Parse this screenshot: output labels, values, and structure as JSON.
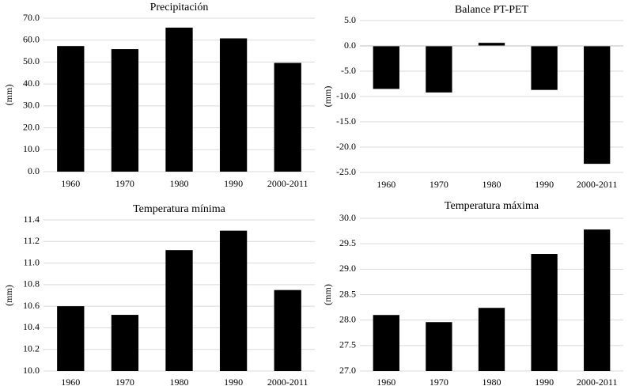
{
  "chart_data": [
    {
      "type": "bar",
      "title": "Precipitación",
      "ylabel": "(mm)",
      "xlabel": "",
      "categories": [
        "1960",
        "1970",
        "1980",
        "1990",
        "2000-2011"
      ],
      "values": [
        57.3,
        55.9,
        65.7,
        60.8,
        49.6
      ],
      "ylim": [
        0,
        70
      ],
      "yticks": [
        "0.0",
        "10.0",
        "20.0",
        "30.0",
        "40.0",
        "50.0",
        "60.0",
        "70.0"
      ],
      "ytick_values": [
        0,
        10,
        20,
        30,
        40,
        50,
        60,
        70
      ],
      "grid": true
    },
    {
      "type": "bar",
      "title": "Balance PT-PET",
      "ylabel": "(mm)",
      "xlabel": "",
      "categories": [
        "1960",
        "1970",
        "1980",
        "1990",
        "2000-2011"
      ],
      "values": [
        -8.5,
        -9.2,
        0.6,
        -8.7,
        -23.3
      ],
      "ylim": [
        -25,
        5
      ],
      "yticks": [
        "-25.0",
        "-20.0",
        "-15.0",
        "-10.0",
        "-5.0",
        "0.0",
        "5.0"
      ],
      "ytick_values": [
        -25,
        -20,
        -15,
        -10,
        -5,
        0,
        5
      ],
      "grid": true
    },
    {
      "type": "bar",
      "title": "Temperatura mínima",
      "ylabel": "(mm)",
      "xlabel": "",
      "categories": [
        "1960",
        "1970",
        "1980",
        "1990",
        "2000-2011"
      ],
      "values": [
        10.6,
        10.52,
        11.12,
        11.3,
        10.75
      ],
      "ylim": [
        10.0,
        11.4
      ],
      "yticks": [
        "10.0",
        "10.2",
        "10.4",
        "10.6",
        "10.8",
        "11.0",
        "11.2",
        "11.4"
      ],
      "ytick_values": [
        10.0,
        10.2,
        10.4,
        10.6,
        10.8,
        11.0,
        11.2,
        11.4
      ],
      "grid": true
    },
    {
      "type": "bar",
      "title": "Temperatura máxima",
      "ylabel": "(mm)",
      "xlabel": "",
      "categories": [
        "1960",
        "1970",
        "1980",
        "1990",
        "2000-2011"
      ],
      "values": [
        28.1,
        27.96,
        28.24,
        29.3,
        29.78
      ],
      "ylim": [
        27.0,
        30.0
      ],
      "yticks": [
        "27.0",
        "27.5",
        "28.0",
        "28.5",
        "29.0",
        "29.5",
        "30.0"
      ],
      "ytick_values": [
        27.0,
        27.5,
        28.0,
        28.5,
        29.0,
        29.5,
        30.0
      ],
      "grid": true
    }
  ]
}
